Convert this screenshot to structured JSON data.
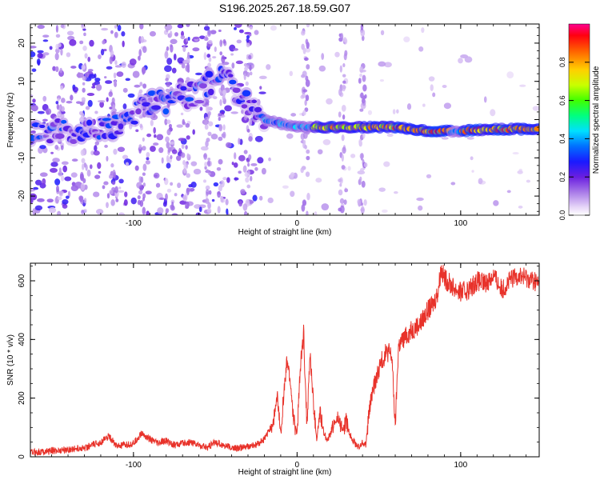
{
  "title": "S196.2025.267.18.59.G07",
  "chart_data": [
    {
      "type": "heatmap",
      "name": "spectrogram",
      "xlabel": "Height of straight line (km)",
      "ylabel": "Frequency (Hz)",
      "xlim": [
        -163,
        148
      ],
      "ylim": [
        -25,
        25
      ],
      "xticks": [
        -100,
        0,
        100
      ],
      "yticks": [
        -20,
        -10,
        0,
        10,
        20
      ],
      "colorbar": {
        "label": "Normalized spectral amplitude",
        "range": [
          0,
          1
        ],
        "ticks": [
          0.0,
          0.2,
          0.4,
          0.6,
          0.8
        ]
      },
      "ridge": {
        "description_points": [
          [
            -150,
            -3
          ],
          [
            -130,
            -3
          ],
          [
            -115,
            -2
          ],
          [
            -100,
            2
          ],
          [
            -90,
            4
          ],
          [
            -80,
            5
          ],
          [
            -60,
            7
          ],
          [
            -45,
            12
          ],
          [
            -35,
            6
          ],
          [
            -28,
            3
          ],
          [
            -20,
            0
          ],
          [
            -10,
            -1
          ],
          [
            0,
            -2
          ],
          [
            20,
            -2
          ],
          [
            40,
            -2
          ],
          [
            60,
            -2
          ],
          [
            80,
            -3
          ],
          [
            100,
            -3
          ],
          [
            120,
            -2.5
          ],
          [
            148,
            -2.5
          ]
        ],
        "strong_segments": [
          {
            "x": [
              10,
              60
            ],
            "y": -2,
            "amplitude": 0.85
          },
          {
            "x": [
              60,
              95
            ],
            "y": -3,
            "amplitude": 0.95
          },
          {
            "x": [
              100,
              125
            ],
            "y": -2.5,
            "amplitude": 0.95
          },
          {
            "x": [
              125,
              148
            ],
            "y": -2.5,
            "amplitude": 0.9
          },
          {
            "x": [
              -85,
              -75
            ],
            "y": 5,
            "amplitude": 0.35
          },
          {
            "x": [
              -70,
              -62
            ],
            "y": -8,
            "amplitude": 0.4
          },
          {
            "x": [
              -40,
              -35
            ],
            "y": 14,
            "amplitude": 0.3
          }
        ]
      }
    },
    {
      "type": "line",
      "name": "snr",
      "xlabel": "Height of straight line (km)",
      "ylabel": "SNR (10 * v/v)",
      "xlim": [
        -163,
        148
      ],
      "ylim": [
        0,
        660
      ],
      "xticks": [
        -100,
        0,
        100
      ],
      "yticks": [
        0,
        200,
        400,
        600
      ],
      "color": "#e8322a",
      "series": [
        {
          "name": "SNR",
          "x": [
            -163,
            -150,
            -140,
            -130,
            -120,
            -115,
            -110,
            -100,
            -95,
            -90,
            -85,
            -80,
            -75,
            -70,
            -65,
            -60,
            -55,
            -50,
            -45,
            -40,
            -35,
            -30,
            -25,
            -20,
            -15,
            -12,
            -10,
            -8,
            -6,
            -4,
            -2,
            0,
            2,
            4,
            6,
            8,
            10,
            12,
            14,
            16,
            18,
            20,
            22,
            25,
            28,
            30,
            32,
            34,
            36,
            38,
            40,
            42,
            44,
            46,
            48,
            50,
            52,
            54,
            56,
            58,
            60,
            62,
            65,
            68,
            70,
            72,
            74,
            76,
            78,
            80,
            82,
            84,
            86,
            88,
            90,
            95,
            100,
            105,
            110,
            115,
            120,
            125,
            130,
            135,
            140,
            145,
            148
          ],
          "y": [
            15,
            20,
            25,
            30,
            50,
            70,
            35,
            45,
            80,
            60,
            45,
            55,
            40,
            45,
            50,
            40,
            30,
            50,
            40,
            30,
            30,
            35,
            40,
            60,
            110,
            200,
            80,
            220,
            330,
            250,
            120,
            80,
            300,
            420,
            110,
            350,
            180,
            60,
            150,
            90,
            60,
            70,
            110,
            130,
            90,
            120,
            80,
            60,
            40,
            30,
            50,
            40,
            150,
            220,
            260,
            300,
            330,
            350,
            360,
            340,
            100,
            380,
            400,
            420,
            430,
            440,
            450,
            460,
            480,
            500,
            510,
            530,
            560,
            640,
            610,
            580,
            560,
            570,
            600,
            590,
            620,
            570,
            600,
            620,
            610,
            600,
            590
          ]
        }
      ]
    }
  ]
}
